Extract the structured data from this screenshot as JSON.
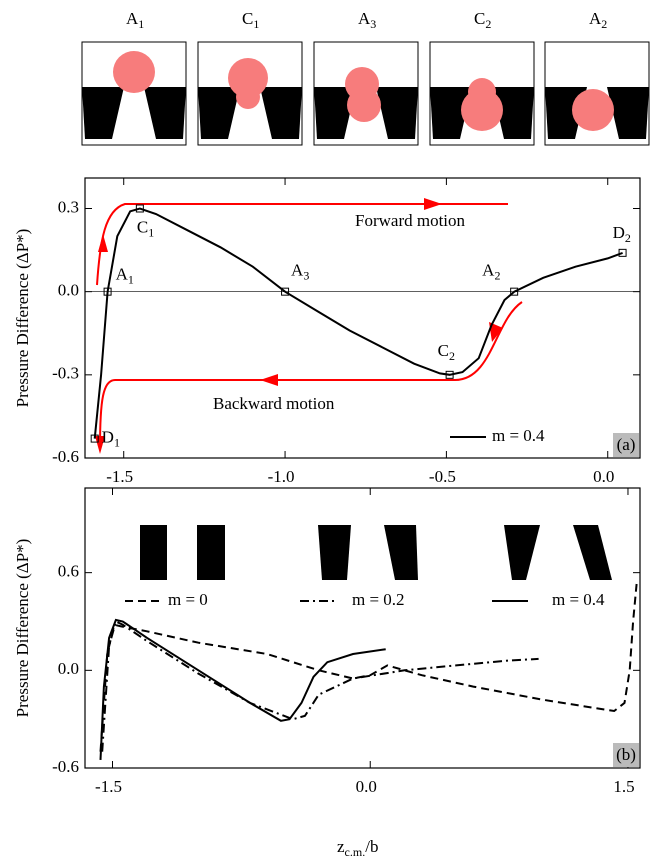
{
  "insets": [
    {
      "text": "A",
      "sub": "1"
    },
    {
      "text": "C",
      "sub": "1"
    },
    {
      "text": "A",
      "sub": "3"
    },
    {
      "text": "C",
      "sub": "2"
    },
    {
      "text": "A",
      "sub": "2"
    }
  ],
  "chart_data": [
    {
      "type": "line",
      "panel_label": "(a)",
      "y_label": "Pressure Difference (ΔP*)",
      "xlim": [
        -1.62,
        0.1
      ],
      "ylim": [
        -0.6,
        0.41
      ],
      "xticks": [
        -1.5,
        {
          "value": -1.0,
          "label": "-1.0"
        },
        -0.5,
        {
          "value": 0,
          "label": "0.0"
        }
      ],
      "yticks": [
        -0.6,
        -0.3,
        {
          "value": 0,
          "label": "0.0"
        },
        0.3
      ],
      "zero_line": true,
      "legend": "lower right",
      "series": [
        {
          "name": "m = 0.4",
          "color": "#000000",
          "dash": "solid",
          "x": [
            -1.59,
            -1.57,
            -1.55,
            -1.52,
            -1.48,
            -1.45,
            -1.4,
            -1.3,
            -1.2,
            -1.1,
            -1.0,
            -0.9,
            -0.8,
            -0.7,
            -0.6,
            -0.52,
            -0.49,
            -0.45,
            -0.4,
            -0.36,
            -0.32,
            -0.29,
            -0.2,
            -0.1,
            0.0,
            0.046
          ],
          "values": [
            -0.53,
            -0.3,
            0.0,
            0.2,
            0.29,
            0.3,
            0.28,
            0.22,
            0.16,
            0.09,
            0.0,
            -0.07,
            -0.14,
            -0.2,
            -0.26,
            -0.295,
            -0.3,
            -0.29,
            -0.24,
            -0.12,
            -0.03,
            0.0,
            0.05,
            0.09,
            0.12,
            0.14
          ]
        }
      ],
      "points": {
        "x": [
          -1.59,
          -1.55,
          -1.45,
          -1.0,
          -0.49,
          -0.29,
          0.046
        ],
        "values": [
          -0.53,
          0.0,
          0.3,
          0.0,
          -0.3,
          0.0,
          0.14
        ],
        "labels": [
          {
            "text": "D",
            "sub": "1"
          },
          {
            "text": "A",
            "sub": "1"
          },
          {
            "text": "C",
            "sub": "1"
          },
          {
            "text": "A",
            "sub": "3"
          },
          {
            "text": "C",
            "sub": "2"
          },
          {
            "text": "A",
            "sub": "2"
          },
          {
            "text": "D",
            "sub": "2"
          }
        ]
      },
      "annotations": [
        "Forward motion",
        "Backward motion"
      ],
      "annotation_color": "#ff0000"
    },
    {
      "type": "line",
      "panel_label": "(b)",
      "y_label": "Pressure Difference (ΔP*)",
      "x_label": {
        "text": "z",
        "sub": "c.m.",
        "rest": "/b"
      },
      "xlim": [
        -1.66,
        1.57
      ],
      "ylim": [
        -0.6,
        1.12
      ],
      "xticks": [
        -1.5,
        {
          "value": 0,
          "label": "0.0"
        },
        1.5
      ],
      "yticks": [
        -0.6,
        {
          "value": 0,
          "label": "0.0"
        },
        0.6
      ],
      "legend": "upper",
      "series": [
        {
          "name": "m = 0",
          "color": "#000000",
          "dash": "dashed",
          "x": [
            -1.57,
            -1.53,
            -1.49,
            -1.45,
            -1.3,
            -1.0,
            -0.6,
            -0.3,
            -0.1,
            0.0,
            0.1,
            0.3,
            0.6,
            1.0,
            1.3,
            1.42,
            1.48,
            1.51,
            1.53,
            1.55
          ],
          "values": [
            -0.5,
            0.1,
            0.28,
            0.27,
            0.24,
            0.17,
            0.1,
            0.0,
            -0.05,
            -0.03,
            0.03,
            -0.03,
            -0.1,
            -0.18,
            -0.23,
            -0.25,
            -0.2,
            0.0,
            0.3,
            0.53
          ]
        },
        {
          "name": "m = 0.2",
          "color": "#000000",
          "dash": "dashdot",
          "x": [
            -1.56,
            -1.52,
            -1.48,
            -1.44,
            -1.3,
            -1.0,
            -0.7,
            -0.45,
            -0.38,
            -0.3,
            -0.1,
            0.2,
            0.5,
            0.8,
            0.98
          ],
          "values": [
            -0.5,
            0.15,
            0.3,
            0.28,
            0.18,
            -0.02,
            -0.2,
            -0.3,
            -0.28,
            -0.15,
            -0.05,
            0.0,
            0.03,
            0.06,
            0.07
          ]
        },
        {
          "name": "m = 0.4",
          "color": "#000000",
          "dash": "solid",
          "x": [
            -1.57,
            -1.55,
            -1.52,
            -1.48,
            -1.44,
            -1.3,
            -1.0,
            -0.7,
            -0.52,
            -0.47,
            -0.4,
            -0.33,
            -0.25,
            -0.1,
            0.09
          ],
          "values": [
            -0.55,
            -0.1,
            0.2,
            0.31,
            0.3,
            0.2,
            0.0,
            -0.2,
            -0.31,
            -0.3,
            -0.2,
            -0.04,
            0.05,
            0.1,
            0.13
          ]
        }
      ]
    }
  ]
}
